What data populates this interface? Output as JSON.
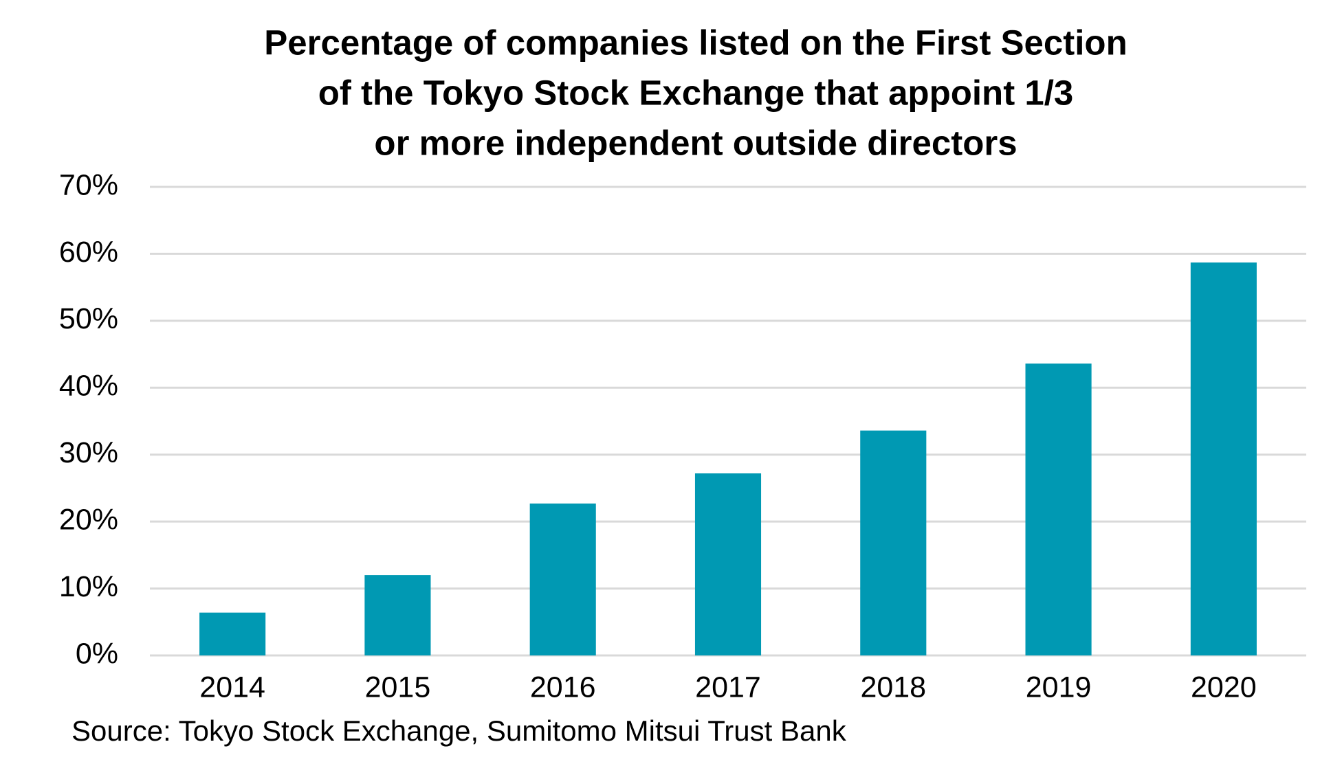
{
  "chart_data": {
    "type": "bar",
    "title": [
      "Percentage of companies listed on the First Section",
      "of the Tokyo Stock Exchange that appoint 1/3",
      "or more independent outside directors"
    ],
    "categories": [
      "2014",
      "2015",
      "2016",
      "2017",
      "2018",
      "2019",
      "2020"
    ],
    "values": [
      6.4,
      12.0,
      22.7,
      27.2,
      33.6,
      43.6,
      58.7
    ],
    "color": "#0099b3",
    "ylim": [
      0,
      70
    ],
    "yticks": [
      {
        "value": 0,
        "label": "0%"
      },
      {
        "value": 10,
        "label": "10%"
      },
      {
        "value": 20,
        "label": "20%"
      },
      {
        "value": 30,
        "label": "30%"
      },
      {
        "value": 40,
        "label": "40%"
      },
      {
        "value": 50,
        "label": "50%"
      },
      {
        "value": 60,
        "label": "60%"
      },
      {
        "value": 70,
        "label": "70%"
      }
    ],
    "grid": true,
    "source": "Source:  Tokyo Stock Exchange, Sumitomo Mitsui Trust Bank"
  }
}
